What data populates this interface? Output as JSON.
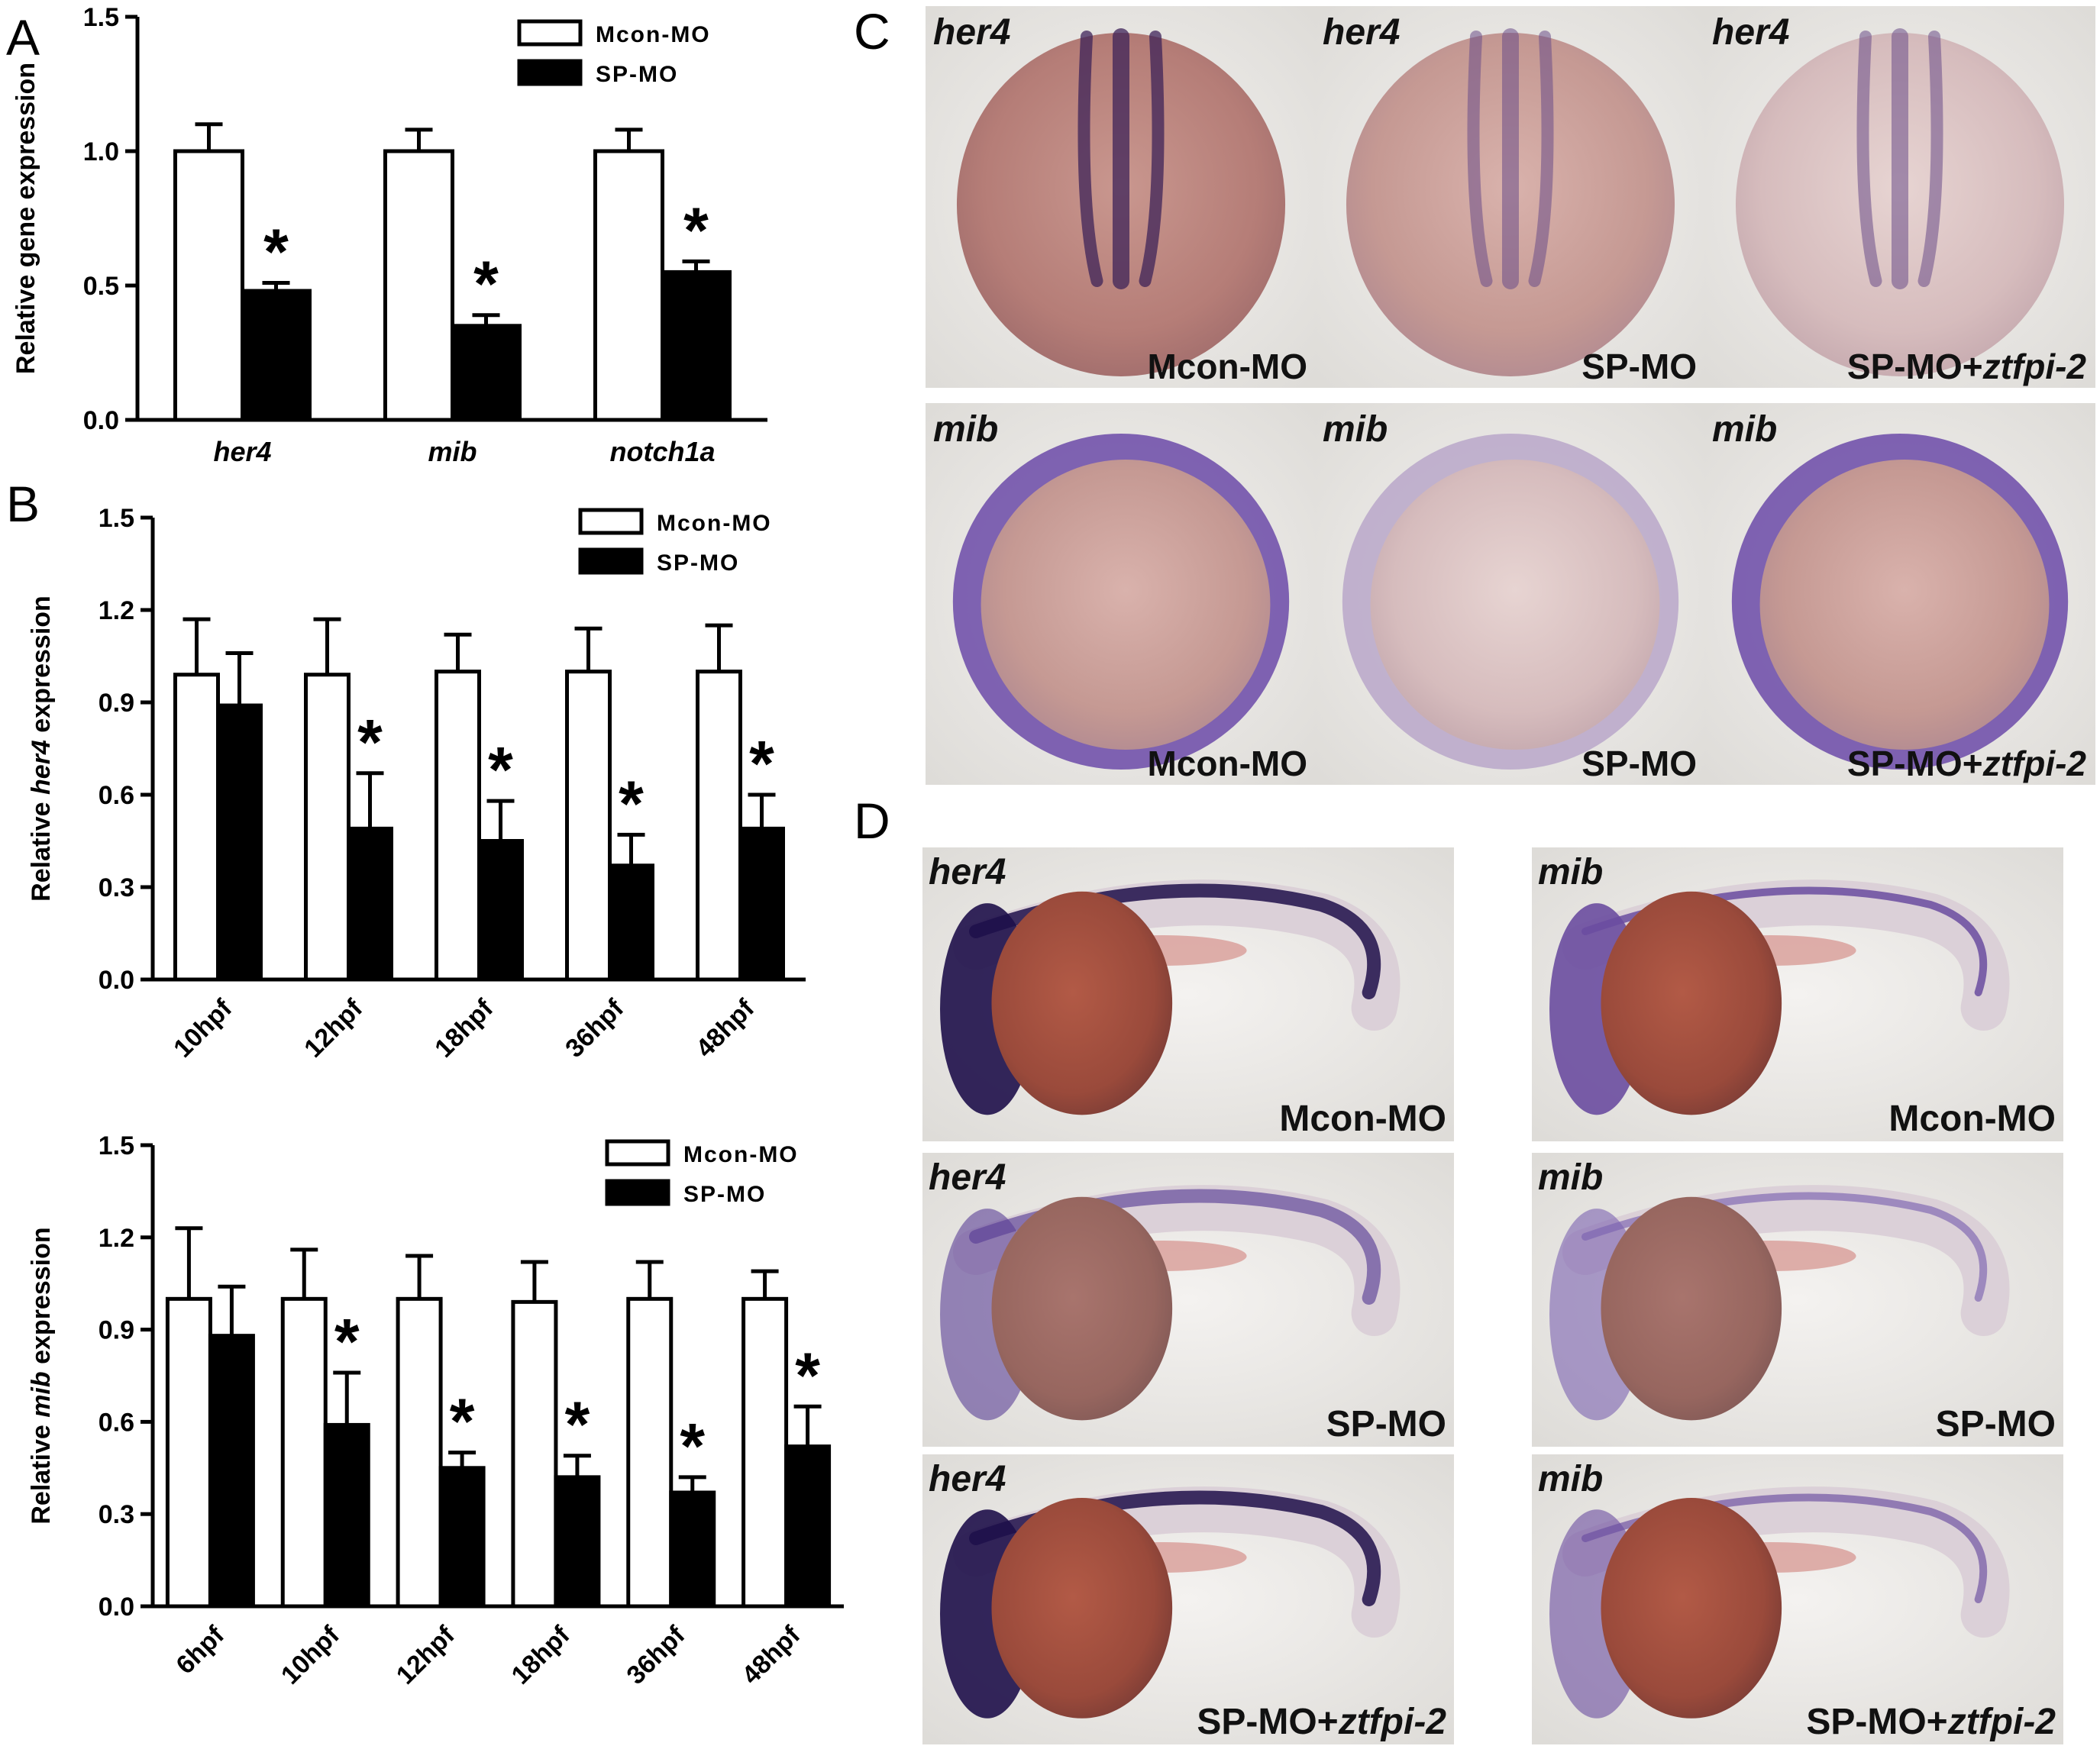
{
  "panel_letters": {
    "a": "A",
    "b": "B",
    "c": "C",
    "d": "D"
  },
  "legend": {
    "control": "Mcon-MO",
    "knockdown": "SP-MO"
  },
  "colors": {
    "control_fill": "#ffffff",
    "knockdown_fill": "#000000",
    "stroke": "#000000"
  },
  "significance_marker": "*",
  "chart_data": [
    {
      "type": "bar",
      "panel": "A",
      "categories": [
        "her4",
        "mib",
        "notch1a"
      ],
      "series": [
        {
          "name": "Mcon-MO",
          "values": [
            1.0,
            1.0,
            1.0
          ],
          "errors": [
            0.1,
            0.08,
            0.08
          ],
          "significant": [
            false,
            false,
            false
          ]
        },
        {
          "name": "SP-MO",
          "values": [
            0.48,
            0.35,
            0.55
          ],
          "errors": [
            0.03,
            0.04,
            0.04
          ],
          "significant": [
            true,
            true,
            true
          ]
        }
      ],
      "ylabel": "Relative gene expression",
      "ylim": [
        0,
        1.5
      ],
      "yticks": [
        "0.0",
        "0.5",
        "1.0",
        "1.5"
      ],
      "tick_italic": true,
      "tick_rotated": false,
      "legend_position": "top-right"
    },
    {
      "type": "bar",
      "panel": "B",
      "categories": [
        "10hpf",
        "12hpf",
        "18hpf",
        "36hpf",
        "48hpf"
      ],
      "series": [
        {
          "name": "Mcon-MO",
          "values": [
            0.99,
            0.99,
            1.0,
            1.0,
            1.0
          ],
          "errors": [
            0.18,
            0.18,
            0.12,
            0.14,
            0.15
          ],
          "significant": [
            false,
            false,
            false,
            false,
            false
          ]
        },
        {
          "name": "SP-MO",
          "values": [
            0.89,
            0.49,
            0.45,
            0.37,
            0.49
          ],
          "errors": [
            0.17,
            0.18,
            0.13,
            0.1,
            0.11
          ],
          "significant": [
            false,
            true,
            true,
            true,
            true
          ]
        }
      ],
      "ylabel_prefix": "Relative ",
      "ylabel_gene": "her4",
      "ylabel_suffix": " expression",
      "ylim": [
        0,
        1.5
      ],
      "yticks": [
        "0.0",
        "0.3",
        "0.6",
        "0.9",
        "1.2",
        "1.5"
      ],
      "tick_rotated": true,
      "legend_position": "top-right"
    },
    {
      "type": "bar",
      "panel": "B-lower",
      "categories": [
        "6hpf",
        "10hpf",
        "12hpf",
        "18hpf",
        "36hpf",
        "48hpf"
      ],
      "series": [
        {
          "name": "Mcon-MO",
          "values": [
            1.0,
            1.0,
            1.0,
            0.99,
            1.0,
            1.0
          ],
          "errors": [
            0.23,
            0.16,
            0.14,
            0.13,
            0.12,
            0.09
          ],
          "significant": [
            false,
            false,
            false,
            false,
            false,
            false
          ]
        },
        {
          "name": "SP-MO",
          "values": [
            0.88,
            0.59,
            0.45,
            0.42,
            0.37,
            0.52
          ],
          "errors": [
            0.16,
            0.17,
            0.05,
            0.07,
            0.05,
            0.13
          ],
          "significant": [
            false,
            true,
            true,
            true,
            true,
            true
          ]
        }
      ],
      "ylabel_prefix": "Relative ",
      "ylabel_gene": "mib",
      "ylabel_suffix": " expression",
      "ylim": [
        0,
        1.5
      ],
      "yticks": [
        "0.0",
        "0.3",
        "0.6",
        "0.9",
        "1.2",
        "1.5"
      ],
      "tick_rotated": true,
      "legend_position": "top-right"
    }
  ],
  "panel_c": {
    "images": [
      {
        "gene": "her4",
        "condition": "Mcon-MO",
        "condition_suffix": "",
        "style": "her4_dorsal"
      },
      {
        "gene": "her4",
        "condition": "SP-MO",
        "condition_suffix": "",
        "style": "her4_dorsal_weak"
      },
      {
        "gene": "her4",
        "condition": "SP-MO+",
        "condition_suffix": "ztfpi-2",
        "style": "her4_dorsal_pale"
      },
      {
        "gene": "mib",
        "condition": "Mcon-MO",
        "condition_suffix": "",
        "style": "mib_ring"
      },
      {
        "gene": "mib",
        "condition": "SP-MO",
        "condition_suffix": "",
        "style": "mib_ring_weak"
      },
      {
        "gene": "mib",
        "condition": "SP-MO+",
        "condition_suffix": "ztfpi-2",
        "style": "mib_ring"
      }
    ]
  },
  "panel_d": {
    "images": [
      {
        "gene": "her4",
        "condition": "Mcon-MO",
        "condition_suffix": "",
        "style": "strong"
      },
      {
        "gene": "mib",
        "condition": "Mcon-MO",
        "condition_suffix": "",
        "style": "mib_strong"
      },
      {
        "gene": "her4",
        "condition": "SP-MO",
        "condition_suffix": "",
        "style": "weak"
      },
      {
        "gene": "mib",
        "condition": "SP-MO",
        "condition_suffix": "",
        "style": "mib_weak"
      },
      {
        "gene": "her4",
        "condition": "SP-MO+",
        "condition_suffix": "ztfpi-2",
        "style": "strong"
      },
      {
        "gene": "mib",
        "condition": "SP-MO+",
        "condition_suffix": "ztfpi-2",
        "style": "mib_rescue"
      }
    ]
  }
}
